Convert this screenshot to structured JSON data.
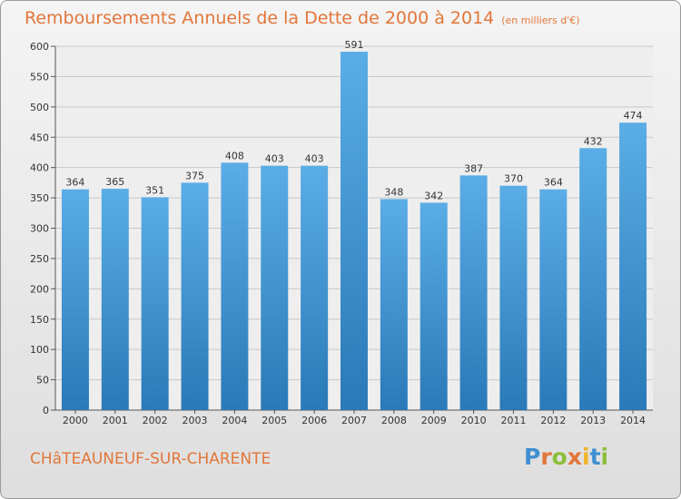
{
  "title": "Remboursements Annuels de la Dette de 2000 à 2014",
  "subtitle": "(en milliers d'€)",
  "city": "CHâTEAUNEUF-SUR-CHARENTE",
  "logo": "Proxiti",
  "colors": {
    "bar_light": "#5aade6",
    "bar_dark": "#2a79b8",
    "title": "#e2763a",
    "grid": "#c8c8c8"
  },
  "chart_data": {
    "type": "bar",
    "categories": [
      "2000",
      "2001",
      "2002",
      "2003",
      "2004",
      "2005",
      "2006",
      "2007",
      "2008",
      "2009",
      "2010",
      "2011",
      "2012",
      "2013",
      "2014"
    ],
    "values": [
      364,
      365,
      351,
      375,
      408,
      403,
      403,
      591,
      348,
      342,
      387,
      370,
      364,
      432,
      474
    ],
    "title": "Remboursements Annuels de la Dette de 2000 à 2014",
    "ylabel": "",
    "xlabel": "",
    "ylim": [
      0,
      600
    ],
    "yticks": [
      0,
      50,
      100,
      150,
      200,
      250,
      300,
      350,
      400,
      450,
      500,
      550,
      600
    ],
    "grid": true,
    "legend": "none"
  }
}
